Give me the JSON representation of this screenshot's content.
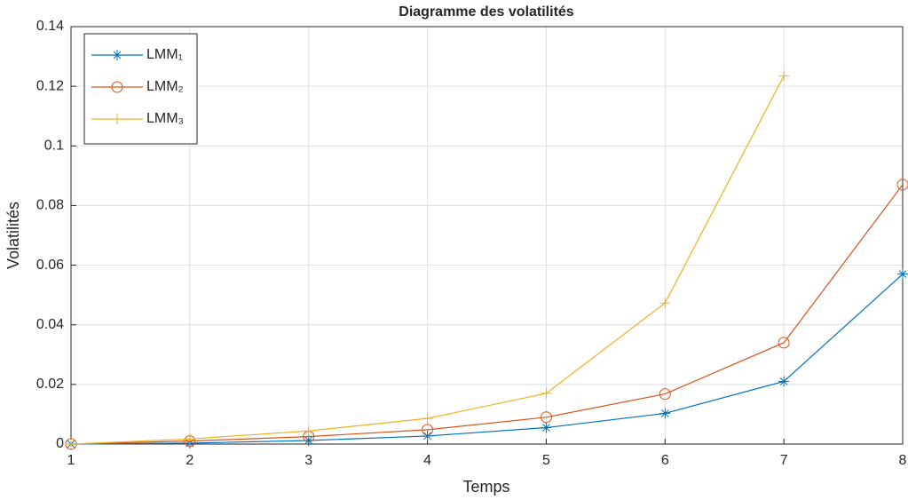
{
  "chart_data": {
    "type": "line",
    "title": "Diagramme des volatilités",
    "x_label": "Temps",
    "y_label": "Volatilités",
    "x": [
      1,
      2,
      3,
      4,
      5,
      6,
      7,
      8
    ],
    "series": [
      {
        "name": "LMM₁",
        "color": "#0072bd",
        "marker": "asterisk",
        "values": [
          0,
          0.0003,
          0.0012,
          0.0027,
          0.0055,
          0.0103,
          0.021,
          0.057
        ]
      },
      {
        "name": "LMM₂",
        "color": "#d95319",
        "marker": "circle",
        "values": [
          0,
          0.001,
          0.0025,
          0.0048,
          0.009,
          0.0168,
          0.034,
          0.087
        ]
      },
      {
        "name": "LMM₃",
        "color": "#edb120",
        "marker": "plus",
        "values": [
          0,
          0.0017,
          0.0044,
          0.0086,
          0.017,
          0.0473,
          0.1235,
          null
        ]
      }
    ],
    "xlim": [
      1,
      8
    ],
    "ylim": [
      0,
      0.14
    ],
    "xticks": [
      1,
      2,
      3,
      4,
      5,
      6,
      7,
      8
    ],
    "yticks": [
      0,
      0.02,
      0.04,
      0.06,
      0.08,
      0.1,
      0.12,
      0.14
    ],
    "grid": true,
    "legend": "upper left"
  }
}
